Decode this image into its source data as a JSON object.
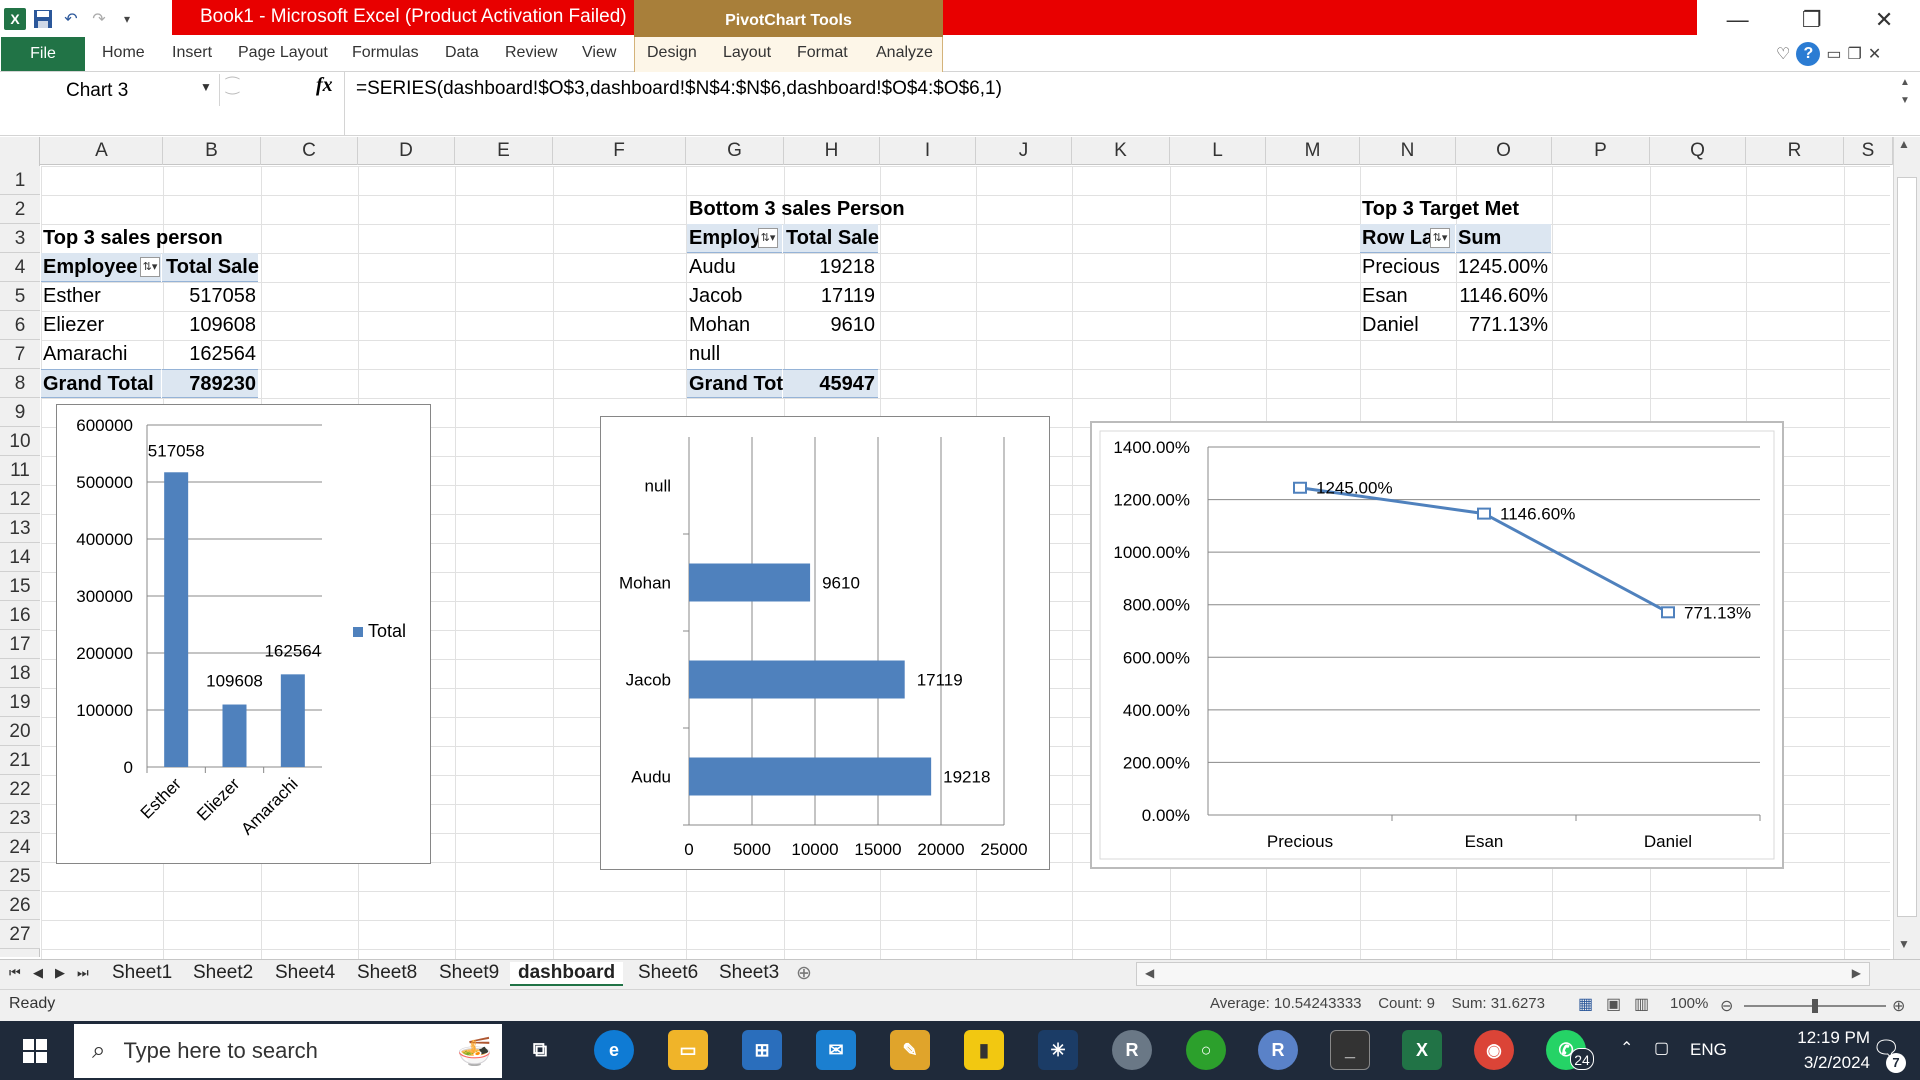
{
  "window": {
    "title": "Book1  -  Microsoft Excel (Product Activation Failed)",
    "context_tab": "PivotChart Tools"
  },
  "ribbon": {
    "file": "File",
    "tabs": [
      "Home",
      "Insert",
      "Page Layout",
      "Formulas",
      "Data",
      "Review",
      "View"
    ],
    "context_tabs": [
      "Design",
      "Layout",
      "Format",
      "Analyze"
    ]
  },
  "formula_bar": {
    "name_box": "Chart 3",
    "fx": "fx",
    "formula": "=SERIES(dashboard!$O$3,dashboard!$N$4:$N$6,dashboard!$O$4:$O$6,1)"
  },
  "columns": [
    "A",
    "B",
    "C",
    "D",
    "E",
    "F",
    "G",
    "H",
    "I",
    "J",
    "K",
    "L",
    "M",
    "N",
    "O",
    "P",
    "Q",
    "R",
    "S"
  ],
  "rows": [
    "1",
    "2",
    "3",
    "4",
    "5",
    "6",
    "7",
    "8",
    "9",
    "10",
    "11",
    "12",
    "13",
    "14",
    "15",
    "16",
    "17",
    "18",
    "19",
    "20",
    "21",
    "22",
    "23",
    "24",
    "25",
    "26",
    "27"
  ],
  "pivot_top": {
    "title": "Top 3 sales person",
    "h1": "Employee",
    "h2": "Total Sale",
    "rows": [
      {
        "name": "Esther",
        "value": "517058"
      },
      {
        "name": "Eliezer",
        "value": "109608"
      },
      {
        "name": "Amarachi",
        "value": "162564"
      }
    ],
    "total_label": "Grand Total",
    "total_value": "789230"
  },
  "pivot_bottom": {
    "title": "Bottom 3 sales Person",
    "h1": "Employ",
    "h2": "Total Sale",
    "rows": [
      {
        "name": "Audu",
        "value": "19218"
      },
      {
        "name": "Jacob",
        "value": "17119"
      },
      {
        "name": "Mohan",
        "value": "9610"
      },
      {
        "name": "null",
        "value": ""
      }
    ],
    "total_label": "Grand Tot",
    "total_value": "45947"
  },
  "pivot_target": {
    "title": "Top  3 Target Met",
    "h1": "Row La",
    "h2": "Sum",
    "rows": [
      {
        "name": "Precious",
        "value": "1245.00%"
      },
      {
        "name": "Esan",
        "value": "1146.60%"
      },
      {
        "name": "Daniel",
        "value": "771.13%"
      }
    ]
  },
  "chart_data": [
    {
      "type": "bar",
      "orientation": "vertical",
      "categories": [
        "Esther",
        "Eliezer",
        "Amarachi"
      ],
      "values": [
        517058,
        109608,
        162564
      ],
      "ylim": [
        0,
        600000
      ],
      "yticks": [
        "0",
        "100000",
        "200000",
        "300000",
        "400000",
        "500000",
        "600000"
      ],
      "data_labels": [
        "517058",
        "109608",
        "162564"
      ],
      "legend": {
        "label": "Total",
        "position": "right"
      },
      "grid": true,
      "color": "#4f81bd"
    },
    {
      "type": "bar",
      "orientation": "horizontal",
      "categories": [
        "Audu",
        "Jacob",
        "Mohan",
        "null"
      ],
      "values": [
        19218,
        17119,
        9610,
        null
      ],
      "xlim": [
        0,
        25000
      ],
      "xticks": [
        "0",
        "5000",
        "10000",
        "15000",
        "20000",
        "25000"
      ],
      "data_labels": [
        "19218",
        "17119",
        "9610",
        ""
      ],
      "grid": true,
      "color": "#4f81bd"
    },
    {
      "type": "line",
      "categories": [
        "Precious",
        "Esan",
        "Daniel"
      ],
      "values": [
        12.45,
        11.466,
        7.7113
      ],
      "ylim": [
        0,
        14
      ],
      "yticks": [
        "0.00%",
        "200.00%",
        "400.00%",
        "600.00%",
        "800.00%",
        "1000.00%",
        "1200.00%",
        "1400.00%"
      ],
      "data_labels": [
        "1245.00%",
        "1146.60%",
        "771.13%"
      ],
      "grid": true,
      "color": "#4f81bd"
    }
  ],
  "sheet_tabs": {
    "tabs": [
      "Sheet1",
      "Sheet2",
      "Sheet4",
      "Sheet8",
      "Sheet9",
      "dashboard",
      "Sheet6",
      "Sheet3"
    ],
    "active": "dashboard"
  },
  "status": {
    "ready": "Ready",
    "average": "Average: 10.54243333",
    "count": "Count: 9",
    "sum": "Sum: 31.6273",
    "zoom": "100%"
  },
  "taskbar": {
    "search_placeholder": "Type here to search",
    "lang": "ENG",
    "time": "12:19 PM",
    "date": "3/2/2024",
    "whatsapp_badge": "24",
    "notif_badge": "7"
  },
  "colors": {
    "excel_green": "#217346",
    "activation_red": "#e80000",
    "pivot_gold": "#a87f3a",
    "series_blue": "#4f81bd",
    "pivot_header": "#dce6f1"
  }
}
